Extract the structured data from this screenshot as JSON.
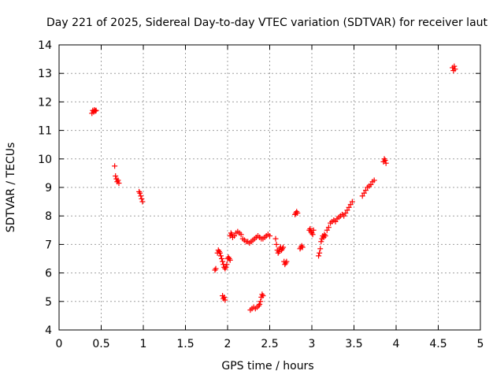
{
  "chart_data": {
    "type": "scatter",
    "title": "Day 221 of 2025, Sidereal Day-to-day VTEC variation (SDTVAR) for receiver laut",
    "xlabel": "GPS time / hours",
    "ylabel": "SDTVAR / TECUs",
    "xlim": [
      0,
      5
    ],
    "ylim": [
      4,
      14
    ],
    "x_ticks": [
      0,
      0.5,
      1,
      1.5,
      2,
      2.5,
      3,
      3.5,
      4,
      4.5,
      5
    ],
    "x_tick_labels": [
      "0",
      "0.5",
      "1",
      "1.5",
      "2",
      "2.5",
      "3",
      "3.5",
      "4",
      "4.5",
      "5"
    ],
    "y_ticks": [
      4,
      5,
      6,
      7,
      8,
      9,
      10,
      11,
      12,
      13,
      14
    ],
    "y_tick_labels": [
      "4",
      "5",
      "6",
      "7",
      "8",
      "9",
      "10",
      "11",
      "12",
      "13",
      "14"
    ],
    "grid": true,
    "marker": "+",
    "marker_color": "#ff0000",
    "series": [
      {
        "name": "SDTVAR",
        "x": [
          0.39,
          0.4,
          0.41,
          0.42,
          0.43,
          0.44,
          0.66,
          0.67,
          0.68,
          0.69,
          0.7,
          0.71,
          0.95,
          0.96,
          0.97,
          0.98,
          0.99,
          1.85,
          1.86,
          1.88,
          1.89,
          1.9,
          1.91,
          1.92,
          1.93,
          1.94,
          1.95,
          1.96,
          1.97,
          1.98,
          1.99,
          2.0,
          2.01,
          2.02,
          2.03,
          1.94,
          1.95,
          1.96,
          1.97,
          2.03,
          2.04,
          2.05,
          2.06,
          2.08,
          2.1,
          2.12,
          2.14,
          2.16,
          2.18,
          2.2,
          2.22,
          2.24,
          2.26,
          2.28,
          2.3,
          2.32,
          2.34,
          2.36,
          2.38,
          2.4,
          2.42,
          2.44,
          2.46,
          2.48,
          2.5,
          2.27,
          2.29,
          2.31,
          2.33,
          2.35,
          2.37,
          2.38,
          2.39,
          2.4,
          2.41,
          2.42,
          2.57,
          2.58,
          2.59,
          2.6,
          2.61,
          2.62,
          2.63,
          2.64,
          2.65,
          2.66,
          2.67,
          2.68,
          2.69,
          2.7,
          2.8,
          2.81,
          2.82,
          2.83,
          2.86,
          2.87,
          2.88,
          2.89,
          2.97,
          2.98,
          2.99,
          3.0,
          3.01,
          3.02,
          3.08,
          3.09,
          3.1,
          3.11,
          3.12,
          3.13,
          3.14,
          3.15,
          3.16,
          3.18,
          3.2,
          3.22,
          3.24,
          3.26,
          3.28,
          3.3,
          3.32,
          3.34,
          3.36,
          3.38,
          3.4,
          3.42,
          3.44,
          3.46,
          3.48,
          3.6,
          3.62,
          3.64,
          3.66,
          3.68,
          3.7,
          3.72,
          3.74,
          3.85,
          3.86,
          3.87,
          3.88,
          4.67,
          4.68,
          4.69,
          4.7
        ],
        "y": [
          11.6,
          11.7,
          11.65,
          11.72,
          11.68,
          11.7,
          9.75,
          9.4,
          9.3,
          9.2,
          9.25,
          9.15,
          8.85,
          8.8,
          8.7,
          8.6,
          8.5,
          6.1,
          6.15,
          6.7,
          6.8,
          6.75,
          6.7,
          6.6,
          6.5,
          6.4,
          6.3,
          6.2,
          6.15,
          6.2,
          6.3,
          6.5,
          6.55,
          6.5,
          6.45,
          5.2,
          5.1,
          5.15,
          5.05,
          7.3,
          7.4,
          7.35,
          7.25,
          7.3,
          7.4,
          7.45,
          7.4,
          7.35,
          7.2,
          7.15,
          7.1,
          7.1,
          7.05,
          7.1,
          7.15,
          7.2,
          7.25,
          7.3,
          7.25,
          7.2,
          7.2,
          7.25,
          7.3,
          7.35,
          7.3,
          4.7,
          4.75,
          4.8,
          4.75,
          4.8,
          4.85,
          4.9,
          5.0,
          5.15,
          5.25,
          5.2,
          7.2,
          7.0,
          6.8,
          6.7,
          6.75,
          6.85,
          6.9,
          6.8,
          6.85,
          6.9,
          6.4,
          6.3,
          6.35,
          6.4,
          8.05,
          8.1,
          8.15,
          8.1,
          6.85,
          6.9,
          6.95,
          6.9,
          7.5,
          7.55,
          7.45,
          7.4,
          7.35,
          7.5,
          6.6,
          6.7,
          6.85,
          7.1,
          7.2,
          7.3,
          7.25,
          7.35,
          7.3,
          7.5,
          7.6,
          7.75,
          7.8,
          7.85,
          7.8,
          7.9,
          7.95,
          8.0,
          8.05,
          8.0,
          8.1,
          8.2,
          8.3,
          8.4,
          8.5,
          8.7,
          8.8,
          8.9,
          9.0,
          9.05,
          9.1,
          9.2,
          9.25,
          9.9,
          10.0,
          9.95,
          9.85,
          13.2,
          13.1,
          13.25,
          13.15
        ]
      }
    ]
  }
}
